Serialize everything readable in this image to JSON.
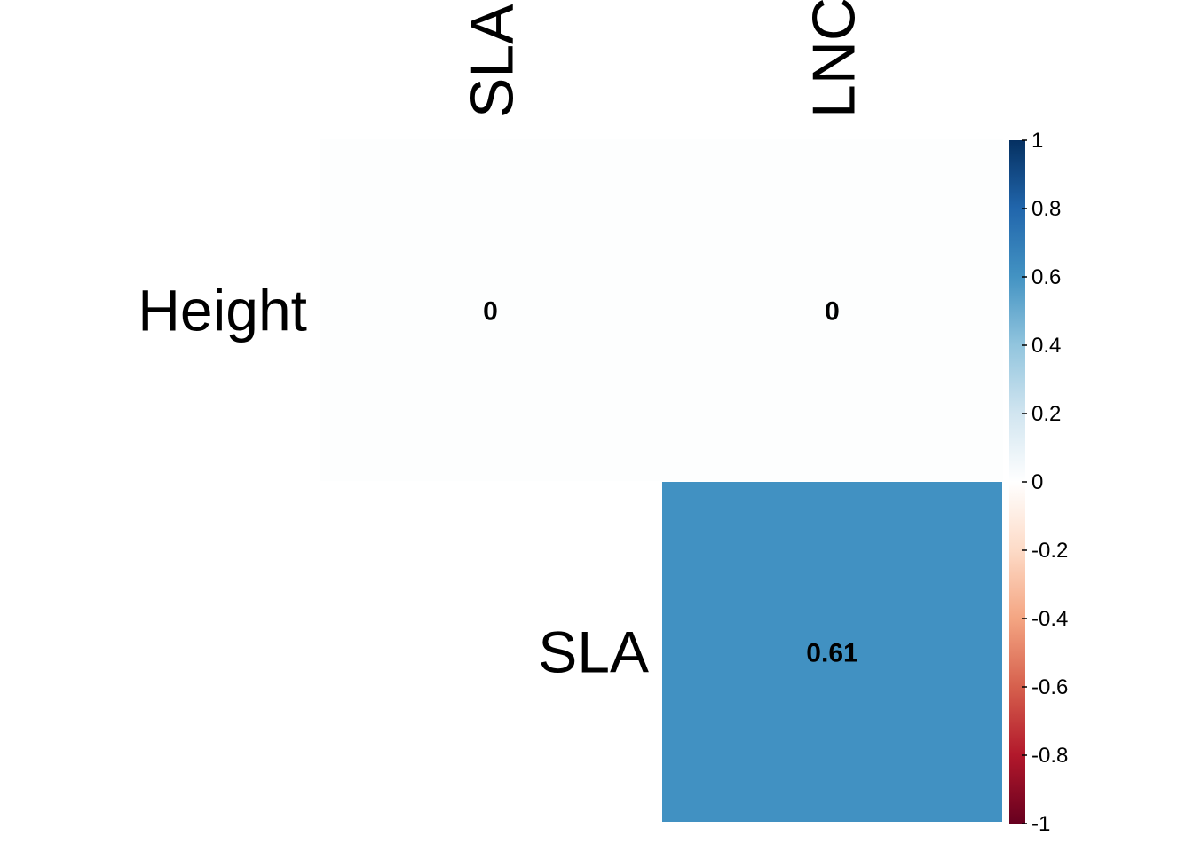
{
  "chart_data": {
    "type": "heatmap",
    "title": "",
    "columns": [
      "SLA",
      "LNC"
    ],
    "rows": [
      "Height",
      "SLA"
    ],
    "cells": [
      {
        "row": "Height",
        "col": "SLA",
        "value": 0,
        "label": "0"
      },
      {
        "row": "Height",
        "col": "LNC",
        "value": 0,
        "label": "0"
      },
      {
        "row": "SLA",
        "col": "LNC",
        "value": 0.61,
        "label": "0.61"
      }
    ],
    "colorbar": {
      "range": [
        -1,
        1
      ],
      "ticks": [
        1,
        0.8,
        0.6,
        0.4,
        0.2,
        0,
        -0.2,
        -0.4,
        -0.6,
        -0.8,
        -1
      ],
      "tick_labels": [
        "1",
        "0.8",
        "0.6",
        "0.4",
        "0.2",
        "0",
        "-0.2",
        "-0.4",
        "-0.6",
        "-0.8",
        "-1"
      ],
      "colors": [
        "#67001F",
        "#B2182B",
        "#D6604D",
        "#F4A582",
        "#FDDBC7",
        "#FFFFFF",
        "#D1E5F0",
        "#92C5DE",
        "#4393C3",
        "#2166AC",
        "#053061"
      ]
    },
    "legend": "right",
    "grid": false
  }
}
